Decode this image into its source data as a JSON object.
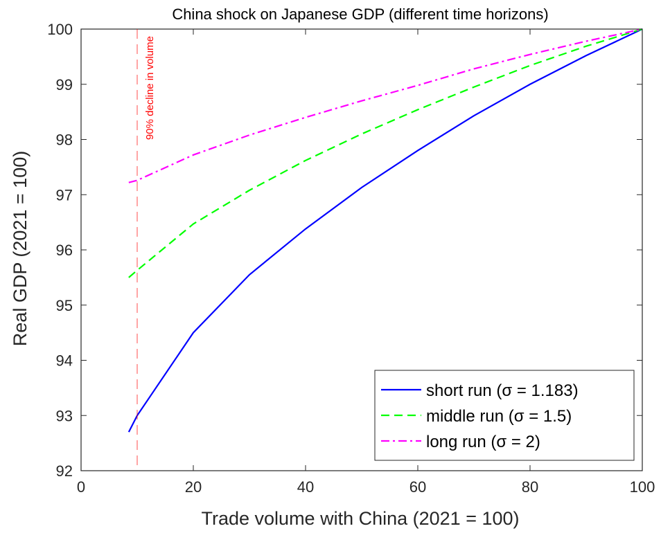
{
  "chart_data": {
    "type": "line",
    "title": "China shock on Japanese GDP (different time horizons)",
    "xlabel": "Trade volume with China (2021 = 100)",
    "ylabel": "Real GDP (2021 = 100)",
    "xlim": [
      0,
      100
    ],
    "ylim": [
      92,
      100
    ],
    "xticks": [
      0,
      20,
      40,
      60,
      80,
      100
    ],
    "yticks": [
      92,
      93,
      94,
      95,
      96,
      97,
      98,
      99,
      100
    ],
    "grid": false,
    "legend_position": "bottom-right",
    "series": [
      {
        "name": "short run (σ = 1.183)",
        "color": "#0000ff",
        "dash": "solid",
        "x": [
          8.5,
          10,
          20,
          30,
          40,
          50,
          60,
          70,
          80,
          90,
          100
        ],
        "y": [
          92.7,
          93.0,
          94.5,
          95.55,
          96.38,
          97.13,
          97.8,
          98.43,
          99.0,
          99.52,
          100.0
        ]
      },
      {
        "name": "middle run (σ = 1.5)",
        "color": "#00ff00",
        "dash": "dashed",
        "x": [
          8.5,
          10,
          20,
          30,
          40,
          50,
          60,
          70,
          80,
          90,
          100
        ],
        "y": [
          95.5,
          95.63,
          96.47,
          97.08,
          97.62,
          98.1,
          98.54,
          98.95,
          99.34,
          99.69,
          100.0
        ]
      },
      {
        "name": "long run (σ = 2)",
        "color": "#ff00ff",
        "dash": "dashdot",
        "x": [
          8.5,
          10,
          20,
          30,
          40,
          50,
          60,
          70,
          80,
          90,
          100
        ],
        "y": [
          97.22,
          97.26,
          97.72,
          98.08,
          98.4,
          98.7,
          98.98,
          99.28,
          99.54,
          99.78,
          100.0
        ]
      }
    ],
    "annotations": [
      {
        "type": "vline",
        "x": 10,
        "color": "#ff0000",
        "text": "90% decline in volume"
      }
    ]
  }
}
